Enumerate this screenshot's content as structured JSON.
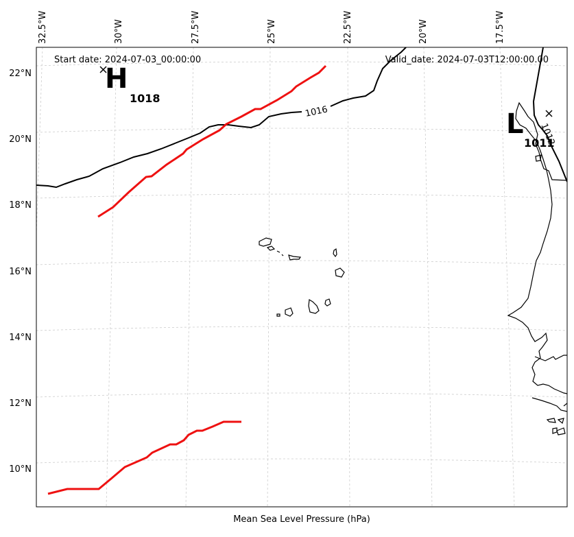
{
  "start_date": "Start date: 2024-07-03_00:00:00",
  "valid_date": "Valid_date: 2024-07-03T12:00:00.00",
  "xlabel": "Mean Sea Level Pressure (hPa)",
  "lon_ticks": [
    "32.5°W",
    "30°W",
    "27.5°W",
    "25°W",
    "22.5°W",
    "20°W",
    "17.5°W"
  ],
  "lat_ticks": [
    "22°N",
    "20°N",
    "18°N",
    "16°N",
    "14°N",
    "12°N",
    "10°N"
  ],
  "contour_label": "1016",
  "contour_label_east": "1012",
  "high": {
    "letter": "H",
    "value": "1018"
  },
  "low": {
    "letter": "L",
    "value": "1011"
  },
  "colors": {
    "front": "#ee1111",
    "isobar": "#000000",
    "grid": "#cccccc"
  }
}
